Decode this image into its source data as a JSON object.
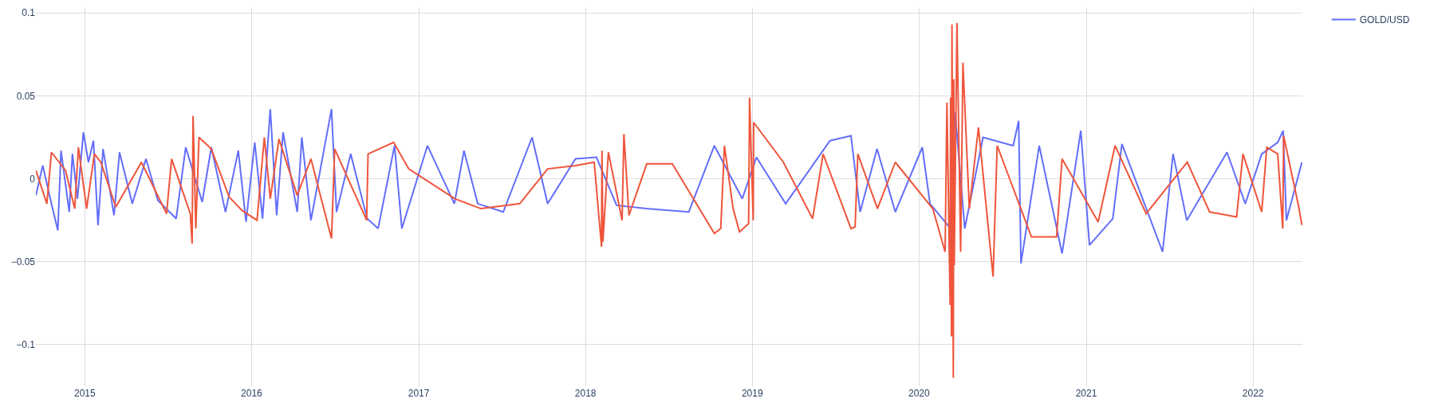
{
  "chart_data": {
    "type": "line",
    "xlim": [
      "2014-09-16",
      "2022-04-19"
    ],
    "ylim": [
      -0.125,
      0.103
    ],
    "xticks": [
      {
        "value": "2015",
        "label": "2015"
      },
      {
        "value": "2016",
        "label": "2016"
      },
      {
        "value": "2017",
        "label": "2017"
      },
      {
        "value": "2018",
        "label": "2018"
      },
      {
        "value": "2019",
        "label": "2019"
      },
      {
        "value": "2020",
        "label": "2020"
      },
      {
        "value": "2021",
        "label": "2021"
      },
      {
        "value": "2022",
        "label": "2022"
      }
    ],
    "yticks": [
      {
        "value": -0.1,
        "label": "−0.1"
      },
      {
        "value": -0.05,
        "label": "−0.05"
      },
      0,
      0.05,
      0.1
    ],
    "grid": true,
    "legend": "top right",
    "marker": "none",
    "line_style": "solid",
    "series": [
      {
        "name": "GOLD/USD",
        "color": "#636efa",
        "x": [
          "2014-09-16",
          "2014-10-01",
          "2014-10-20",
          "2014-11-03",
          "2014-11-10",
          "2014-11-28",
          "2014-12-05",
          "2014-12-16",
          "2014-12-29",
          "2015-01-09",
          "2015-01-20",
          "2015-01-30",
          "2015-02-10",
          "2015-03-06",
          "2015-03-18",
          "2015-04-15",
          "2015-05-15",
          "2015-06-10",
          "2015-07-20",
          "2015-08-10",
          "2015-09-15",
          "2015-10-05",
          "2015-11-05",
          "2015-12-03",
          "2015-12-20",
          "2016-01-08",
          "2016-01-25",
          "2016-02-11",
          "2016-02-25",
          "2016-03-10",
          "2016-04-10",
          "2016-04-20",
          "2016-05-10",
          "2016-06-24",
          "2016-07-05",
          "2016-08-05",
          "2016-09-10",
          "2016-10-04",
          "2016-11-09",
          "2016-11-25",
          "2017-01-20",
          "2017-03-20",
          "2017-04-10",
          "2017-05-10",
          "2017-07-05",
          "2017-09-06",
          "2017-10-10",
          "2017-12-10",
          "2018-01-25",
          "2018-03-10",
          "2018-05-15",
          "2018-08-15",
          "2018-10-10",
          "2018-12-10",
          "2019-01-10",
          "2019-03-15",
          "2019-06-20",
          "2019-08-05",
          "2019-08-25",
          "2019-10-01",
          "2019-11-10",
          "2020-01-08",
          "2020-01-25",
          "2020-03-10",
          "2020-03-20",
          "2020-04-10",
          "2020-05-20",
          "2020-07-25",
          "2020-08-06",
          "2020-08-11",
          "2020-09-20",
          "2020-11-09",
          "2020-12-20",
          "2021-01-08",
          "2021-02-28",
          "2021-03-20",
          "2021-06-17",
          "2021-07-10",
          "2021-08-09",
          "2021-11-05",
          "2021-12-15",
          "2022-01-20",
          "2022-02-24",
          "2022-03-08",
          "2022-03-15",
          "2022-04-18"
        ],
        "values": [
          -0.01,
          0.008,
          -0.015,
          -0.031,
          0.017,
          -0.02,
          0.015,
          -0.012,
          0.028,
          0.01,
          0.023,
          -0.028,
          0.018,
          -0.022,
          0.016,
          -0.015,
          0.012,
          -0.013,
          -0.024,
          0.019,
          -0.014,
          0.019,
          -0.02,
          0.017,
          -0.026,
          0.022,
          -0.024,
          0.042,
          -0.022,
          0.028,
          -0.02,
          0.025,
          -0.025,
          0.042,
          -0.02,
          0.015,
          -0.024,
          -0.03,
          0.02,
          -0.03,
          0.02,
          -0.015,
          0.017,
          -0.015,
          -0.02,
          0.025,
          -0.015,
          0.012,
          0.013,
          -0.016,
          -0.018,
          -0.02,
          0.02,
          -0.012,
          0.013,
          -0.015,
          0.023,
          0.026,
          -0.02,
          0.018,
          -0.02,
          0.019,
          -0.015,
          -0.03,
          0.04,
          -0.03,
          0.025,
          0.02,
          0.035,
          -0.051,
          0.02,
          -0.045,
          0.029,
          -0.04,
          -0.024,
          0.021,
          -0.044,
          0.015,
          -0.025,
          0.016,
          -0.015,
          0.015,
          0.022,
          0.029,
          -0.025,
          0.01
        ]
      },
      {
        "color": "#ef553b",
        "x": [
          "2014-09-16",
          "2014-10-10",
          "2014-10-20",
          "2014-11-20",
          "2014-12-10",
          "2014-12-18",
          "2015-01-05",
          "2015-01-22",
          "2015-02-05",
          "2015-03-10",
          "2015-05-05",
          "2015-06-29",
          "2015-07-10",
          "2015-08-20",
          "2015-08-24",
          "2015-08-26",
          "2015-09-01",
          "2015-09-08",
          "2015-10-05",
          "2015-11-13",
          "2015-12-11",
          "2016-01-13",
          "2016-01-29",
          "2016-02-11",
          "2016-03-01",
          "2016-04-10",
          "2016-05-10",
          "2016-06-24",
          "2016-07-01",
          "2016-09-09",
          "2016-09-12",
          "2016-11-07",
          "2016-12-10",
          "2017-03-21",
          "2017-05-17",
          "2017-08-10",
          "2017-10-10",
          "2017-12-10",
          "2018-01-20",
          "2018-02-05",
          "2018-02-06",
          "2018-02-08",
          "2018-02-20",
          "2018-03-22",
          "2018-03-26",
          "2018-04-06",
          "2018-05-15",
          "2018-07-10",
          "2018-10-10",
          "2018-10-24",
          "2018-11-01",
          "2018-11-20",
          "2018-12-04",
          "2018-12-24",
          "2018-12-26",
          "2019-01-03",
          "2019-01-04",
          "2019-03-10",
          "2019-05-13",
          "2019-06-05",
          "2019-08-05",
          "2019-08-14",
          "2019-08-20",
          "2019-10-02",
          "2019-11-10",
          "2020-01-31",
          "2020-02-27",
          "2020-03-02",
          "2020-03-09",
          "2020-03-10",
          "2020-03-12",
          "2020-03-13",
          "2020-03-16",
          "2020-03-17",
          "2020-03-18",
          "2020-03-24",
          "2020-04-01",
          "2020-04-06",
          "2020-04-20",
          "2020-05-10",
          "2020-06-11",
          "2020-06-20",
          "2020-09-03",
          "2020-10-28",
          "2020-11-09",
          "2021-01-27",
          "2021-03-05",
          "2021-05-12",
          "2021-08-10",
          "2021-09-28",
          "2021-11-26",
          "2021-12-10",
          "2022-01-20",
          "2022-01-31",
          "2022-02-24",
          "2022-03-07",
          "2022-03-09",
          "2022-04-11",
          "2022-04-18"
        ],
        "values": [
          0.005,
          -0.015,
          0.016,
          0.005,
          -0.018,
          0.019,
          -0.018,
          0.015,
          0.01,
          -0.017,
          0.01,
          -0.021,
          0.012,
          -0.021,
          -0.039,
          0.038,
          -0.03,
          0.025,
          0.018,
          -0.011,
          -0.019,
          -0.025,
          0.025,
          -0.012,
          0.024,
          -0.01,
          0.012,
          -0.036,
          0.018,
          -0.025,
          0.015,
          0.022,
          0.006,
          -0.012,
          -0.018,
          -0.015,
          0.006,
          0.008,
          0.01,
          -0.041,
          0.017,
          -0.038,
          0.016,
          -0.025,
          0.027,
          -0.022,
          0.009,
          0.009,
          -0.033,
          -0.03,
          0.02,
          -0.018,
          -0.032,
          -0.027,
          0.049,
          -0.025,
          0.034,
          0.01,
          -0.024,
          0.015,
          -0.03,
          -0.029,
          0.015,
          -0.018,
          0.01,
          -0.018,
          -0.044,
          0.046,
          -0.076,
          0.049,
          -0.095,
          0.093,
          -0.12,
          0.06,
          -0.052,
          0.094,
          -0.044,
          0.07,
          -0.018,
          0.031,
          -0.059,
          0.02,
          -0.035,
          -0.035,
          0.012,
          -0.026,
          0.02,
          -0.021,
          0.01,
          -0.02,
          -0.023,
          0.015,
          -0.02,
          0.019,
          0.015,
          -0.03,
          0.026,
          -0.017,
          -0.028
        ]
      }
    ]
  }
}
